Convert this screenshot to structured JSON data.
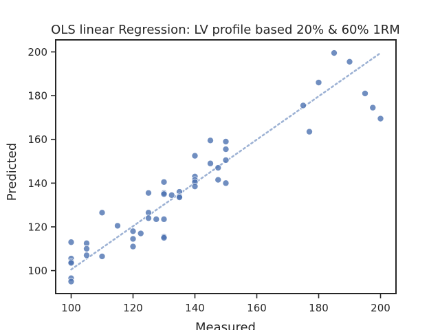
{
  "chart_data": {
    "type": "scatter",
    "title": "OLS linear Regression: LV profile based 20% & 60% 1RM",
    "xlabel": "Measured",
    "ylabel": "Predicted",
    "xlim": [
      95,
      205
    ],
    "ylim": [
      89.5,
      205.5
    ],
    "xticks": [
      100,
      120,
      140,
      160,
      180,
      200
    ],
    "yticks": [
      100,
      120,
      140,
      160,
      180,
      200
    ],
    "grid": false,
    "colors": {
      "points": "#4c72b0",
      "fit_line": "#4c72b0",
      "axes": "#262626"
    },
    "series": [
      {
        "points": [
          [
            100,
            113
          ],
          [
            100,
            105.5
          ],
          [
            100,
            104
          ],
          [
            100,
            103.5
          ],
          [
            100,
            96.5
          ],
          [
            100,
            95
          ],
          [
            105,
            112.5
          ],
          [
            105,
            110
          ],
          [
            105,
            107
          ],
          [
            110,
            126.5
          ],
          [
            110,
            106.5
          ],
          [
            115,
            120.5
          ],
          [
            120,
            118
          ],
          [
            120,
            114.5
          ],
          [
            120,
            111
          ],
          [
            122.5,
            117
          ],
          [
            125,
            135.5
          ],
          [
            125,
            126.5
          ],
          [
            125,
            124
          ],
          [
            127.5,
            123.5
          ],
          [
            130,
            140.5
          ],
          [
            130,
            135.5
          ],
          [
            130,
            135
          ],
          [
            130,
            123.5
          ],
          [
            130,
            115.5
          ],
          [
            130,
            115
          ],
          [
            132.5,
            134.5
          ],
          [
            135,
            136
          ],
          [
            135,
            134
          ],
          [
            135,
            133.5
          ],
          [
            140,
            152.5
          ],
          [
            140,
            143
          ],
          [
            140,
            141.5
          ],
          [
            140,
            140.5
          ],
          [
            140,
            138.5
          ],
          [
            145,
            159.5
          ],
          [
            145,
            149
          ],
          [
            147.5,
            147
          ],
          [
            147.5,
            141.5
          ],
          [
            150,
            159
          ],
          [
            150,
            155.5
          ],
          [
            150,
            150.5
          ],
          [
            150,
            140
          ],
          [
            175,
            175.5
          ],
          [
            177,
            163.5
          ],
          [
            180,
            186
          ],
          [
            185,
            199.5
          ],
          [
            190,
            195.5
          ],
          [
            195,
            181
          ],
          [
            197.5,
            174.5
          ],
          [
            200,
            169.5
          ]
        ]
      }
    ],
    "fit_line": {
      "x": [
        100,
        200
      ],
      "y": [
        100.5,
        199.5
      ],
      "style": "dotted"
    }
  }
}
